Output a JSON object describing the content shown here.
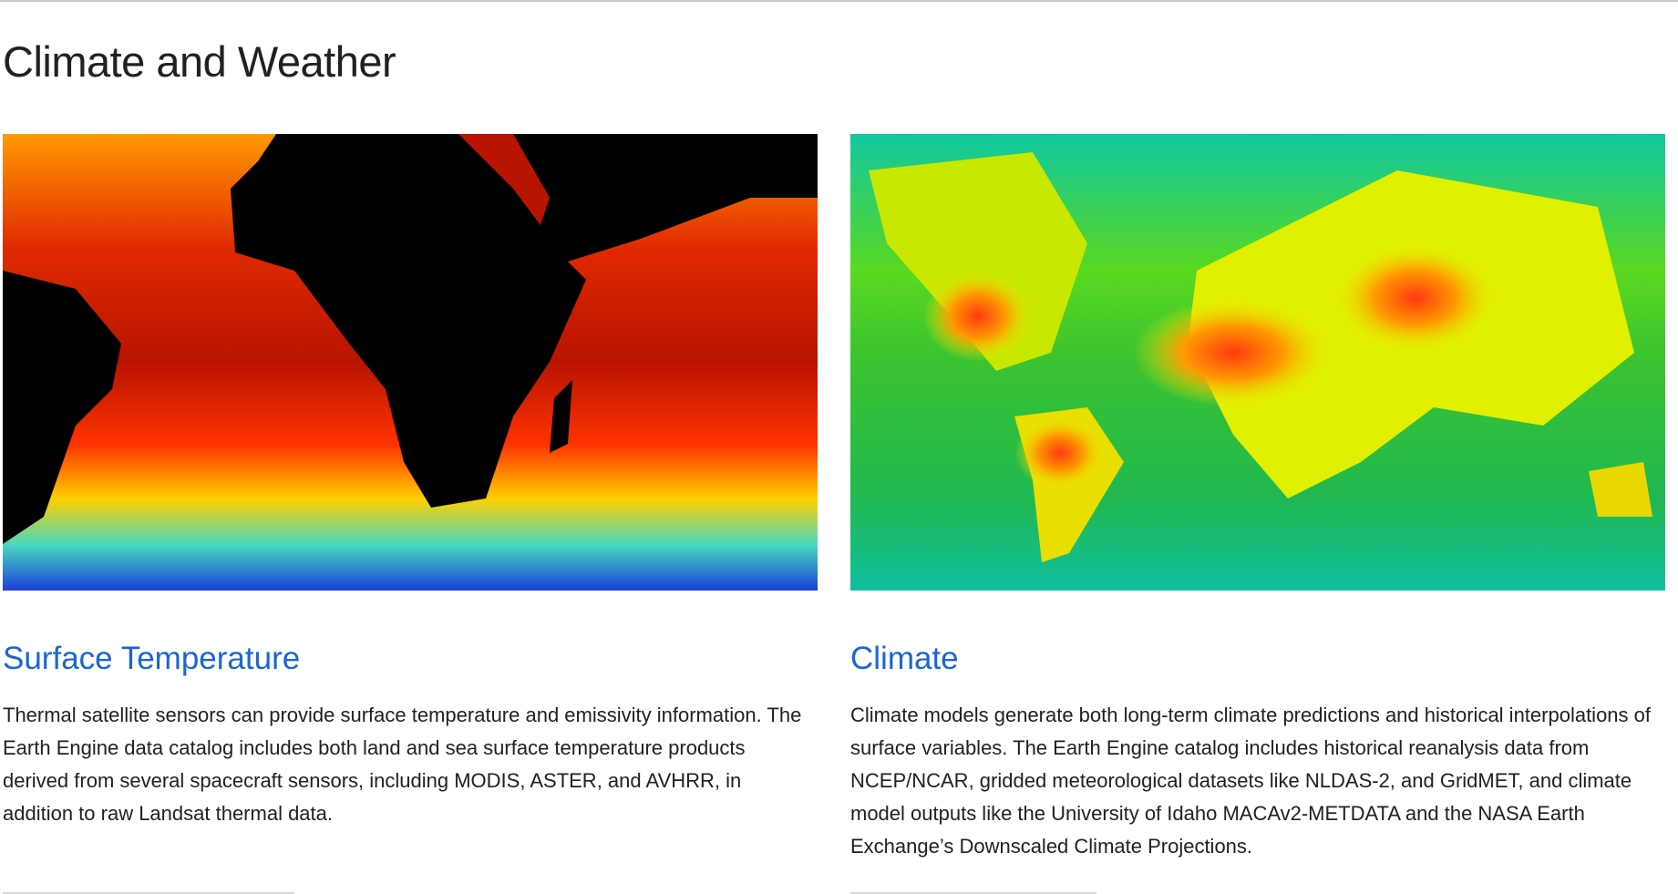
{
  "header": {
    "title": "Climate and Weather"
  },
  "cards": [
    {
      "title": "Surface Temperature",
      "description": "Thermal satellite sensors can provide surface temperature and emissivity information. The Earth Engine data catalog includes both land and sea surface temperature products derived from several spacecraft sensors, including MODIS, ASTER, and AVHRR, in addition to raw Landsat thermal data."
    },
    {
      "title": "Climate",
      "description": "Climate models generate both long-term climate predictions and historical interpolations of surface variables. The Earth Engine catalog includes historical reanalysis data from NCEP/NCAR, gridded meteorological datasets like NLDAS-2, and GridMET, and climate model outputs like the University of Idaho MACAv2-METDATA and the NASA Earth Exchange’s Downscaled Climate Projections."
    }
  ]
}
